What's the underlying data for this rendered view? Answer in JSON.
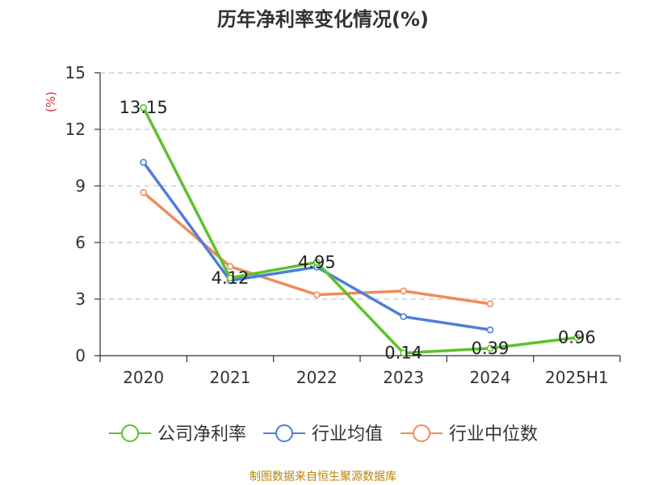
{
  "chart_data": {
    "type": "line",
    "title": "历年净利率变化情况(%)",
    "ylabel": "(%)",
    "categories": [
      "2020",
      "2021",
      "2022",
      "2023",
      "2024",
      "2025H1"
    ],
    "ylim": [
      0,
      15
    ],
    "yticks": [
      0,
      3,
      6,
      9,
      12,
      15
    ],
    "grid": true,
    "legend_position": "bottom",
    "series": [
      {
        "name": "公司净利率",
        "color": "#5cc22c",
        "values": [
          13.15,
          4.12,
          4.95,
          0.14,
          0.39,
          0.96
        ],
        "labels": [
          "13.15",
          "4.12",
          "4.95",
          "0.14",
          "0.39",
          "0.96"
        ]
      },
      {
        "name": "行业均值",
        "color": "#4e7fd9",
        "values": [
          10.25,
          3.98,
          4.7,
          2.07,
          1.37,
          null
        ]
      },
      {
        "name": "行业中位数",
        "color": "#f08c5a",
        "values": [
          8.65,
          4.73,
          3.23,
          3.43,
          2.75,
          null
        ]
      }
    ]
  },
  "footer": "制图数据来自恒生聚源数据库"
}
